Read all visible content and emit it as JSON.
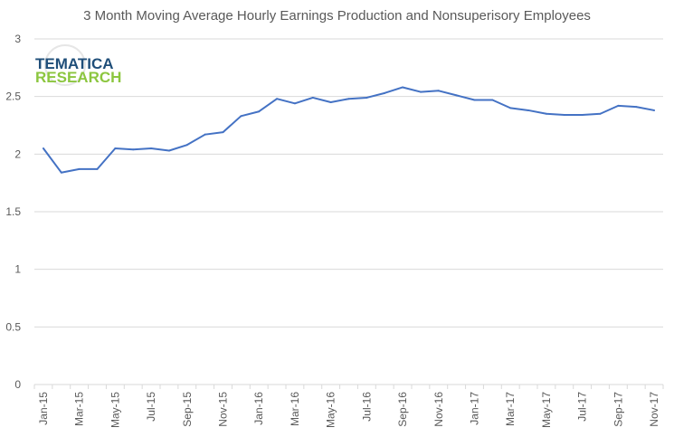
{
  "logo": {
    "line1": "TEMATICA",
    "line2": "RESEARCH",
    "color1": "#1f4e79",
    "color2": "#8cc63f"
  },
  "colors": {
    "series": "#4472c4",
    "grid": "#d9d9d9",
    "text": "#595959"
  },
  "chart_data": {
    "type": "line",
    "title": "3 Month Moving Average Hourly Earnings Production and Nonsuperisory Employees",
    "xlabel": "",
    "ylabel": "",
    "ylim": [
      0,
      3
    ],
    "yticks": [
      0,
      0.5,
      1,
      1.5,
      2,
      2.5,
      3
    ],
    "ytick_labels": [
      "0",
      "0.5",
      "1",
      "1.5",
      "2",
      "2.5",
      "3"
    ],
    "grid": true,
    "legend": "none",
    "x": [
      "Jan-15",
      "Feb-15",
      "Mar-15",
      "Apr-15",
      "May-15",
      "Jun-15",
      "Jul-15",
      "Aug-15",
      "Sep-15",
      "Oct-15",
      "Nov-15",
      "Dec-15",
      "Jan-16",
      "Feb-16",
      "Mar-16",
      "Apr-16",
      "May-16",
      "Jun-16",
      "Jul-16",
      "Aug-16",
      "Sep-16",
      "Oct-16",
      "Nov-16",
      "Dec-16",
      "Jan-17",
      "Feb-17",
      "Mar-17",
      "Apr-17",
      "May-17",
      "Jun-17",
      "Jul-17",
      "Aug-17",
      "Sep-17",
      "Oct-17",
      "Nov-17"
    ],
    "xtick_labels": [
      "Jan-15",
      "Mar-15",
      "May-15",
      "Jul-15",
      "Sep-15",
      "Nov-15",
      "Jan-16",
      "Mar-16",
      "May-16",
      "Jul-16",
      "Sep-16",
      "Nov-16",
      "Jan-17",
      "Mar-17",
      "May-17",
      "Jul-17",
      "Sep-17",
      "Nov-17"
    ],
    "series": [
      {
        "values": [
          2.05,
          1.84,
          1.87,
          1.87,
          2.05,
          2.04,
          2.05,
          2.03,
          2.08,
          2.17,
          2.19,
          2.33,
          2.37,
          2.48,
          2.44,
          2.49,
          2.45,
          2.48,
          2.49,
          2.53,
          2.58,
          2.54,
          2.55,
          2.51,
          2.47,
          2.47,
          2.4,
          2.38,
          2.35,
          2.34,
          2.34,
          2.35,
          2.42,
          2.41,
          2.38
        ]
      }
    ]
  }
}
